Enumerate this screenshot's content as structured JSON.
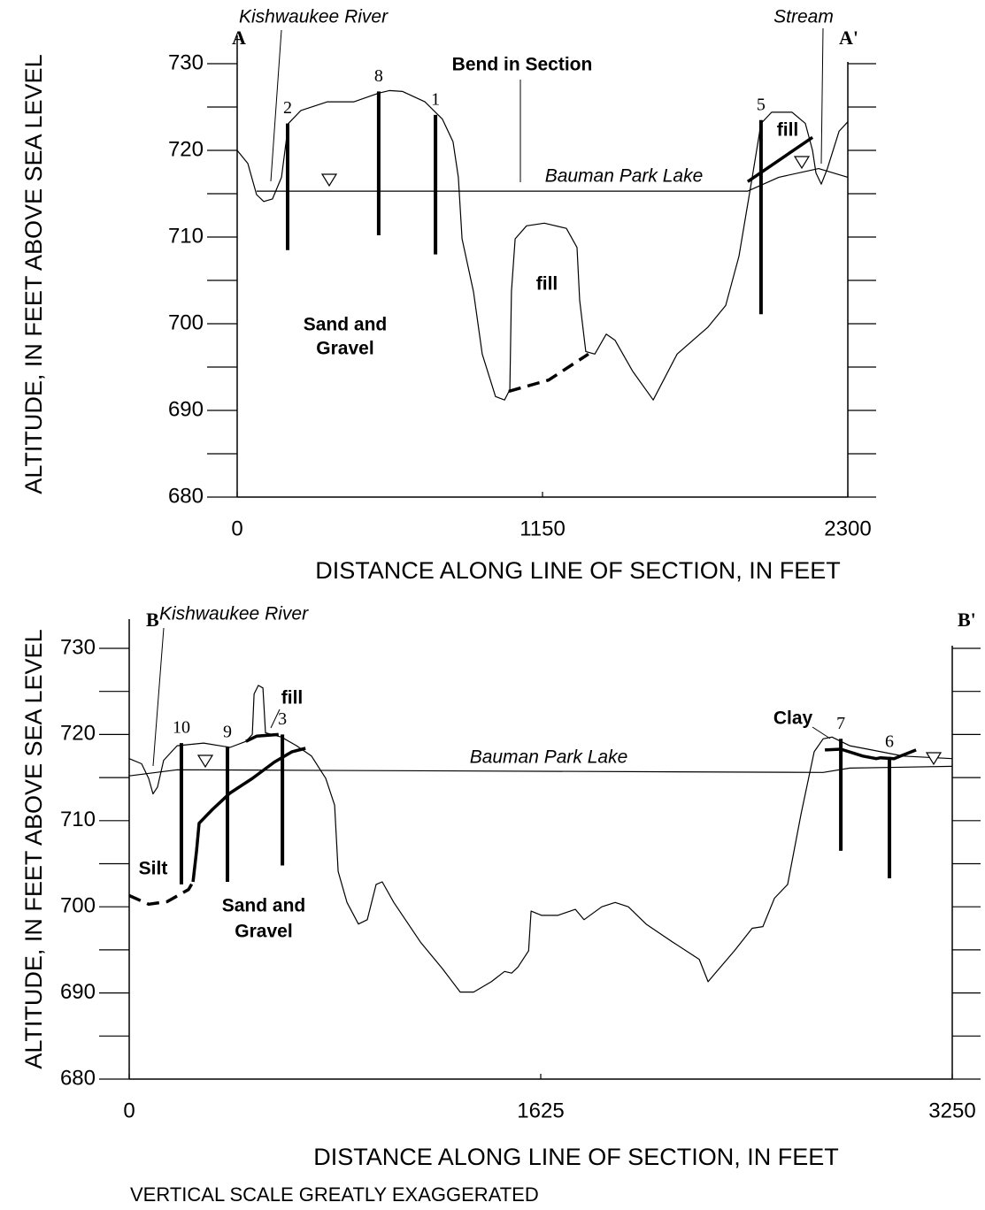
{
  "chart_data": [
    {
      "type": "line",
      "xlim": [
        0,
        2300
      ],
      "ylim": [
        680,
        730
      ],
      "xticks": [
        0,
        1150,
        2300
      ],
      "yticks": [
        680,
        690,
        700,
        710,
        720,
        730
      ],
      "yminor": [
        685,
        695,
        705,
        715,
        725
      ],
      "mirror_yticks": true,
      "xlabel": "DISTANCE ALONG LINE OF SECTION, IN FEET",
      "ylabel": "ALTITUDE, IN FEET ABOVE SEA LEVEL",
      "series": [
        {
          "color": "#000000",
          "width": 1.2,
          "style": "solid",
          "x": [
            0,
            40,
            73,
            100,
            133,
            167,
            193,
            240,
            340,
            440,
            533,
            573,
            623,
            707,
            773,
            813,
            833,
            847,
            890,
            923,
            973,
            1007,
            1027,
            1033,
            1047,
            1090,
            1157,
            1240,
            1280,
            1290,
            1313,
            1347,
            1390,
            1423,
            1490,
            1567,
            1657,
            1773,
            1840,
            1890,
            1940,
            1973,
            2013,
            2090,
            2140,
            2167,
            2180,
            2200,
            2223,
            2267,
            2300
          ],
          "values": [
            720.0,
            718.5,
            714.9,
            714.1,
            714.4,
            716.9,
            723.1,
            724.6,
            725.6,
            725.6,
            726.6,
            726.9,
            726.8,
            725.6,
            723.6,
            721.0,
            716.9,
            709.8,
            703.7,
            696.5,
            691.6,
            691.2,
            692.4,
            703.7,
            709.8,
            711.3,
            711.6,
            711.0,
            708.8,
            702.7,
            696.8,
            696.5,
            698.8,
            698.1,
            694.5,
            691.2,
            696.5,
            699.6,
            702.1,
            707.8,
            716.9,
            723.1,
            724.4,
            724.4,
            723.1,
            720.0,
            717.4,
            716.1,
            717.9,
            722.2,
            723.3
          ]
        },
        {
          "color": "#000000",
          "width": 1.2,
          "style": "solid",
          "x": [
            73,
            1923,
            2040,
            2190,
            2300
          ],
          "values": [
            715.3,
            715.3,
            716.9,
            717.9,
            716.9
          ]
        },
        {
          "color": "#000000",
          "width": 3.5,
          "style": "dashed",
          "x": [
            1023,
            1173,
            1323
          ],
          "values": [
            692.2,
            693.5,
            696.5
          ]
        },
        {
          "color": "#000000",
          "width": 3.5,
          "style": "solid",
          "x": [
            1923,
            2167
          ],
          "values": [
            716.4,
            721.5
          ]
        }
      ],
      "wells": [
        {
          "label": "2",
          "x": 190,
          "top": 723.1,
          "bottom": 708.5
        },
        {
          "label": "8",
          "x": 533,
          "top": 726.8,
          "bottom": 710.2
        },
        {
          "label": "1",
          "x": 747,
          "top": 724.1,
          "bottom": 708.0
        },
        {
          "label": "5",
          "x": 1973,
          "top": 723.5,
          "bottom": 701.1
        }
      ],
      "annotations": [
        "A",
        "A'",
        "Kishwaukee River",
        "Stream",
        "Bend in Section",
        "Bauman Park Lake",
        "fill",
        "fill",
        "Sand and",
        "Gravel"
      ]
    },
    {
      "type": "line",
      "xlim": [
        0,
        3250
      ],
      "ylim": [
        680,
        730
      ],
      "xticks": [
        0,
        1625,
        3250
      ],
      "yticks": [
        680,
        690,
        700,
        710,
        720,
        730
      ],
      "yminor": [
        685,
        695,
        705,
        715,
        725
      ],
      "mirror_yticks": true,
      "xlabel": "DISTANCE ALONG LINE OF SECTION, IN FEET",
      "ylabel": "ALTITUDE, IN FEET ABOVE SEA LEVEL",
      "series": [
        {
          "color": "#000000",
          "width": 1.2,
          "style": "solid",
          "x": [
            0,
            49,
            77,
            94,
            112,
            136,
            189,
            294,
            398,
            461,
            486,
            493,
            510,
            528,
            538,
            601,
            661,
            720,
            776,
            811,
            825,
            860,
            905,
            940,
            975,
            999,
            1045,
            1150,
            1237,
            1307,
            1360,
            1430,
            1482,
            1510,
            1535,
            1577,
            1587,
            1629,
            1692,
            1762,
            1796,
            1866,
            1919,
            1971,
            2041,
            2146,
            2251,
            2286,
            2314,
            2390,
            2460,
            2502,
            2548,
            2600,
            2653,
            2705,
            2740,
            2775,
            2845,
            2932,
            3055,
            3250
          ],
          "values": [
            717.2,
            716.6,
            714.9,
            713.1,
            713.9,
            717.0,
            718.7,
            719.0,
            718.5,
            719.2,
            720.0,
            724.7,
            725.7,
            725.4,
            720.2,
            719.7,
            718.7,
            717.5,
            714.9,
            711.8,
            704.1,
            700.5,
            698.0,
            698.5,
            702.6,
            702.9,
            700.5,
            695.9,
            692.8,
            690.1,
            690.1,
            691.3,
            692.5,
            692.3,
            693.0,
            694.9,
            699.5,
            699.0,
            699.0,
            699.7,
            698.5,
            700.0,
            700.5,
            700.0,
            698.0,
            695.9,
            693.9,
            691.3,
            692.3,
            694.9,
            697.5,
            697.7,
            701.0,
            702.6,
            710.8,
            718.0,
            719.5,
            719.7,
            718.7,
            718.2,
            717.5,
            717.2
          ]
        },
        {
          "color": "#000000",
          "width": 1.2,
          "style": "solid",
          "x": [
            0,
            189,
            2740,
            2845,
            3250
          ],
          "values": [
            715.2,
            715.9,
            715.6,
            716.1,
            716.3
          ]
        },
        {
          "color": "#000000",
          "width": 3.5,
          "style": "dashed",
          "x": [
            0,
            77,
            150,
            234,
            252
          ],
          "values": [
            701.3,
            700.3,
            700.6,
            702.0,
            702.9
          ]
        },
        {
          "color": "#000000",
          "width": 3.5,
          "style": "solid",
          "x": [
            252,
            266,
            276,
            329,
            398,
            486,
            573,
            643,
            696
          ],
          "values": [
            702.9,
            706.5,
            709.7,
            711.3,
            713.2,
            714.9,
            716.8,
            718.0,
            718.4
          ]
        },
        {
          "color": "#000000",
          "width": 3.5,
          "style": "solid",
          "x": [
            461,
            503,
            590
          ],
          "values": [
            719.2,
            719.8,
            720.0
          ]
        },
        {
          "color": "#000000",
          "width": 3.5,
          "style": "solid",
          "x": [
            2747,
            2810,
            2897,
            2950,
            2967,
            3020,
            3107
          ],
          "values": [
            718.2,
            718.3,
            717.5,
            717.2,
            717.3,
            717.2,
            718.2
          ]
        }
      ],
      "wells": [
        {
          "label": "10",
          "x": 206,
          "top": 719.0,
          "bottom": 702.6
        },
        {
          "label": "9",
          "x": 388,
          "top": 718.5,
          "bottom": 702.9
        },
        {
          "label": "3",
          "x": 605,
          "top": 720.0,
          "bottom": 704.8
        },
        {
          "label": "7",
          "x": 2810,
          "top": 719.5,
          "bottom": 706.5
        },
        {
          "label": "6",
          "x": 3002,
          "top": 717.4,
          "bottom": 703.3
        }
      ],
      "annotations": [
        "B",
        "B'",
        "Kishwaukee River",
        "fill",
        "Clay",
        "Bauman Park Lake",
        "Silt",
        "Sand and",
        "Gravel"
      ]
    }
  ],
  "footnote": "VERTICAL SCALE GREATLY EXAGGERATED"
}
